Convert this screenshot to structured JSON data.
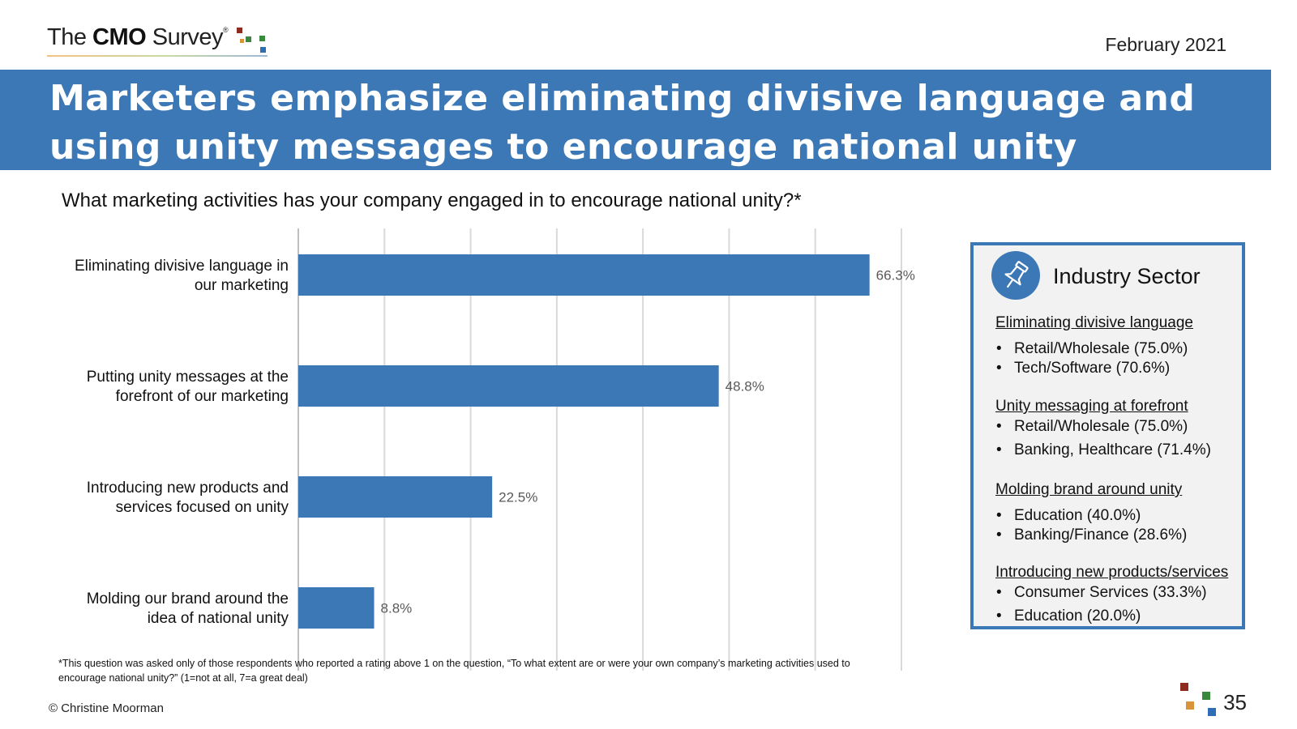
{
  "header": {
    "logo_text_prefix": "The ",
    "logo_text_bold": "CMO",
    "logo_text_suffix": " Survey",
    "logo_reg": "®",
    "date": "February 2021"
  },
  "banner": {
    "title": "Marketers emphasize eliminating divisive language and using unity messages to encourage national unity"
  },
  "question": "What marketing activities has your company engaged in to encourage national unity?*",
  "chart_data": {
    "type": "bar",
    "orientation": "horizontal",
    "categories": [
      [
        "Eliminating divisive language in",
        "our marketing"
      ],
      [
        "Putting unity messages at the",
        "forefront of our marketing"
      ],
      [
        "Introducing new products and",
        "services focused on unity"
      ],
      [
        "Molding our brand around the",
        "idea of national unity"
      ]
    ],
    "values": [
      66.3,
      48.8,
      22.5,
      8.8
    ],
    "value_labels": [
      "66.3%",
      "48.8%",
      "22.5%",
      "8.8%"
    ],
    "xlim": [
      0,
      70
    ],
    "grid": true,
    "bar_color": "#3d78b6"
  },
  "panel": {
    "title": "Industry Sector",
    "icon": "pushpin-icon",
    "sections": [
      {
        "heading": "Eliminating divisive language",
        "items": [
          "Retail/Wholesale (75.0%)",
          "Tech/Software (70.6%)"
        ]
      },
      {
        "heading": "Unity messaging at forefront",
        "items": [
          "Retail/Wholesale (75.0%)",
          "Banking, Healthcare (71.4%)"
        ]
      },
      {
        "heading": "Molding brand around unity",
        "items": [
          "Education (40.0%)",
          "Banking/Finance (28.6%)"
        ]
      },
      {
        "heading": "Introducing new products/services",
        "items": [
          "Consumer Services (33.3%)",
          "Education (20.0%)"
        ]
      }
    ],
    "bullet_char": "•"
  },
  "footnote": "*This question was asked only of those respondents who reported a rating above 1 on the question, “To what extent are or were your own company’s marketing activities used to encourage national unity?” (1=not at all, 7=a great deal)",
  "copyright": "© Christine Moorman",
  "page_number": "35",
  "colors": {
    "brand_blue": "#3d78b6",
    "logo_red": "#8e2a1e",
    "logo_orange": "#d9943a",
    "logo_green": "#3a8a3e",
    "logo_blue": "#2f6db5"
  }
}
